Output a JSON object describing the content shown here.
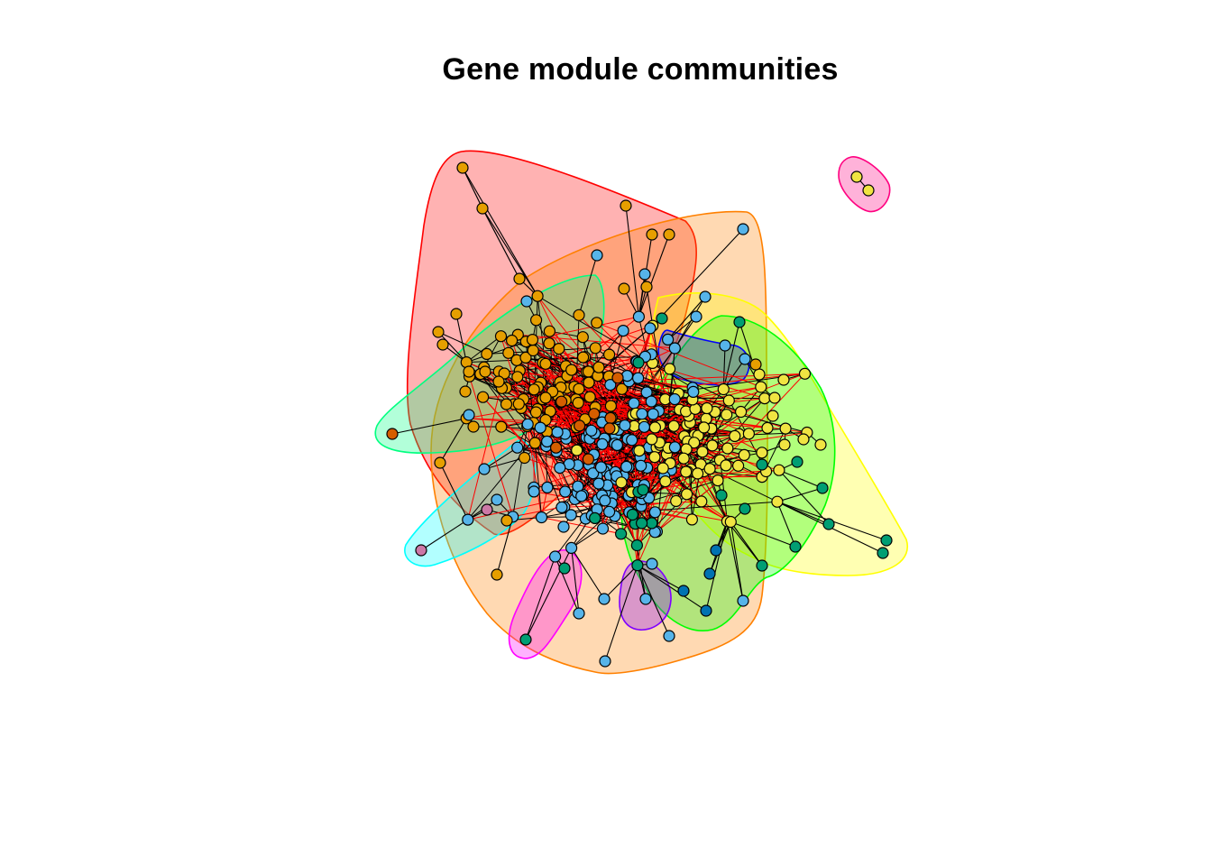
{
  "title": "Gene module communities",
  "palette": {
    "orange_node": "#E69F00",
    "blue_node": "#56B4E9",
    "yellow_node": "#F0E442",
    "green_node": "#009E73",
    "vermillion_node": "#D55E00",
    "pink_node": "#CC79A7",
    "darkblue_node": "#0072B2",
    "edge_black": "#000000",
    "edge_red": "#FF0000"
  },
  "communities": [
    {
      "id": "red",
      "stroke": "#FF0000",
      "fill": "rgba(255,0,0,0.3)"
    },
    {
      "id": "orange",
      "stroke": "#FF8000",
      "fill": "rgba(255,128,0,0.3)"
    },
    {
      "id": "spring-green",
      "stroke": "#00FF80",
      "fill": "rgba(0,255,128,0.3)"
    },
    {
      "id": "cyan",
      "stroke": "#00FFFF",
      "fill": "rgba(0,255,255,0.3)"
    },
    {
      "id": "yellow",
      "stroke": "#FFFF00",
      "fill": "rgba(255,255,0,0.3)"
    },
    {
      "id": "green",
      "stroke": "#00FF00",
      "fill": "rgba(0,255,0,0.3)"
    },
    {
      "id": "blue",
      "stroke": "#0000FF",
      "fill": "rgba(0,0,255,0.3)"
    },
    {
      "id": "violet",
      "stroke": "#8000FF",
      "fill": "rgba(128,0,255,0.3)"
    },
    {
      "id": "magenta",
      "stroke": "#FF00FF",
      "fill": "rgba(255,0,255,0.3)"
    },
    {
      "id": "pink",
      "stroke": "#FF0080",
      "fill": "rgba(255,0,128,0.3)"
    }
  ]
}
